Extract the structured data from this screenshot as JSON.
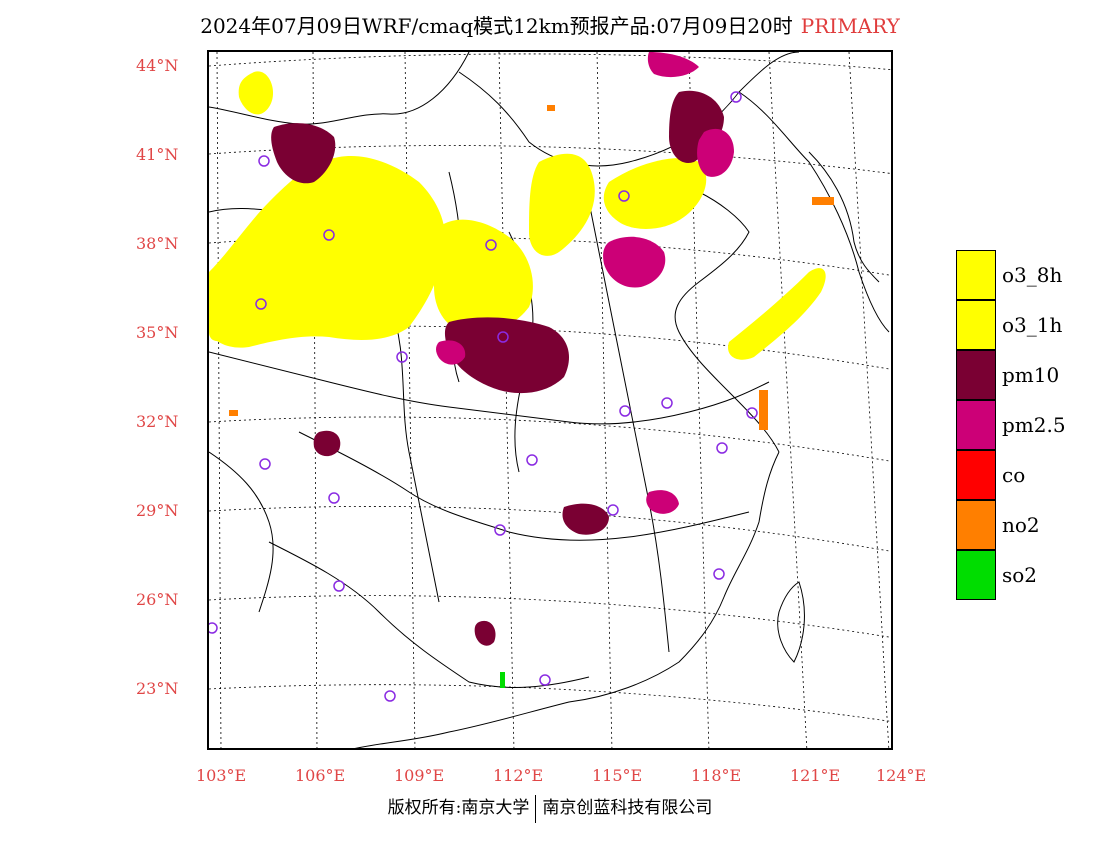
{
  "title": {
    "main": "2024年07月09日WRF/cmaq模式12km预报产品:07月09日20时",
    "tag": "PRIMARY"
  },
  "lat_labels": [
    "44°N",
    "41°N",
    "38°N",
    "35°N",
    "32°N",
    "29°N",
    "26°N",
    "23°N"
  ],
  "lon_labels": [
    "103°E",
    "106°E",
    "109°E",
    "112°E",
    "115°E",
    "118°E",
    "121°E",
    "124°E"
  ],
  "legend": [
    {
      "label": "o3_8h",
      "color": "#ffff00"
    },
    {
      "label": "o3_1h",
      "color": "#ffff00"
    },
    {
      "label": "pm10",
      "color": "#7a0033"
    },
    {
      "label": "pm2.5",
      "color": "#cc0077"
    },
    {
      "label": "co",
      "color": "#ff0000"
    },
    {
      "label": "no2",
      "color": "#ff7f00"
    },
    {
      "label": "so2",
      "color": "#00dd00"
    }
  ],
  "copyright": {
    "left": "版权所有:南京大学",
    "right": "南京创蓝科技有限公司"
  }
}
